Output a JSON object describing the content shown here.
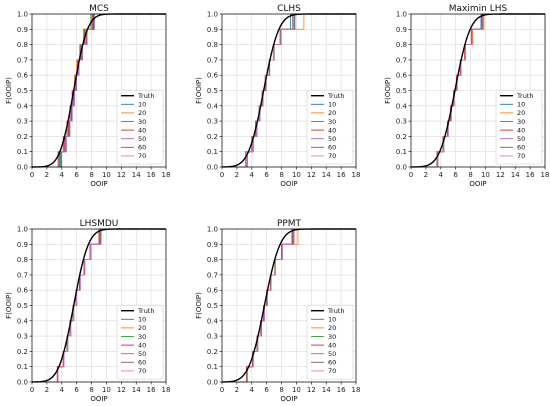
{
  "chart_data": [
    {
      "type": "line",
      "title": "MCS",
      "xlabel": "OOIP",
      "ylabel": "F(OOIP)",
      "xlim": [
        0,
        18
      ],
      "ylim": [
        0,
        1.0
      ],
      "xticks": [
        "0",
        "2",
        "4",
        "6",
        "8",
        "10",
        "12",
        "14",
        "16",
        "18"
      ],
      "yticks": [
        "0.0",
        "0.1",
        "0.2",
        "0.3",
        "0.4",
        "0.5",
        "0.6",
        "0.7",
        "0.8",
        "0.9",
        "1.0"
      ],
      "grid": true,
      "legend_position": "lower-right",
      "truth": {
        "name": "Truth",
        "mean": 5.6,
        "sd": 1.45
      },
      "series": [
        {
          "name": "10",
          "color": "#1f77b4",
          "values": [
            3.9,
            4.6,
            5.0,
            5.3,
            5.6,
            5.9,
            6.2,
            6.6,
            7.2,
            8.3
          ]
        },
        {
          "name": "20",
          "color": "#ff7f0e",
          "values": [
            3.6,
            4.3,
            4.8,
            5.1,
            5.4,
            5.7,
            6.0,
            6.4,
            6.9,
            8.0
          ]
        },
        {
          "name": "30",
          "color": "#2ca02c",
          "values": [
            3.8,
            4.5,
            4.9,
            5.2,
            5.5,
            5.8,
            6.1,
            6.5,
            7.0,
            7.9
          ]
        },
        {
          "name": "40",
          "color": "#d62728",
          "values": [
            3.7,
            4.4,
            4.9,
            5.3,
            5.6,
            5.9,
            6.3,
            6.7,
            7.3,
            8.2
          ]
        },
        {
          "name": "50",
          "color": "#9467bd",
          "values": [
            4.0,
            4.6,
            5.1,
            5.4,
            5.7,
            6.0,
            6.3,
            6.8,
            7.4,
            8.4
          ]
        },
        {
          "name": "60",
          "color": "#8c564b",
          "values": [
            3.5,
            4.2,
            4.7,
            5.1,
            5.4,
            5.8,
            6.1,
            6.5,
            7.1,
            8.1
          ]
        },
        {
          "name": "70",
          "color": "#e377c2",
          "values": [
            3.6,
            4.3,
            4.8,
            5.2,
            5.5,
            5.8,
            6.2,
            6.6,
            7.2,
            8.0
          ]
        }
      ]
    },
    {
      "type": "line",
      "title": "CLHS",
      "xlabel": "OOIP",
      "ylabel": "F(OOIP)",
      "xlim": [
        0,
        18
      ],
      "ylim": [
        0,
        1.0
      ],
      "xticks": [
        "0",
        "2",
        "4",
        "6",
        "8",
        "10",
        "12",
        "14",
        "16",
        "18"
      ],
      "yticks": [
        "0.0",
        "0.1",
        "0.2",
        "0.3",
        "0.4",
        "0.5",
        "0.6",
        "0.7",
        "0.8",
        "0.9",
        "1.0"
      ],
      "grid": true,
      "legend_position": "lower-right",
      "truth": {
        "name": "Truth",
        "mean": 5.6,
        "sd": 1.6
      },
      "series": [
        {
          "name": "10",
          "color": "#1f77b4",
          "values": [
            3.4,
            4.2,
            4.7,
            5.1,
            5.5,
            5.9,
            6.4,
            7.0,
            7.9,
            9.2
          ]
        },
        {
          "name": "20",
          "color": "#ff7f0e",
          "values": [
            3.2,
            4.0,
            4.5,
            5.0,
            5.4,
            5.8,
            6.3,
            6.9,
            7.8,
            11.0
          ]
        },
        {
          "name": "30",
          "color": "#2ca02c",
          "values": [
            3.3,
            4.1,
            4.6,
            5.0,
            5.5,
            5.9,
            6.4,
            7.0,
            7.9,
            9.8
          ]
        },
        {
          "name": "40",
          "color": "#d62728",
          "values": [
            3.2,
            4.0,
            4.6,
            5.0,
            5.4,
            5.8,
            6.3,
            6.9,
            7.8,
            9.6
          ]
        },
        {
          "name": "50",
          "color": "#9467bd",
          "values": [
            3.3,
            4.1,
            4.6,
            5.1,
            5.5,
            5.9,
            6.4,
            7.0,
            7.9,
            9.7
          ]
        },
        {
          "name": "60",
          "color": "#8c564b",
          "values": [
            3.2,
            4.0,
            4.5,
            5.0,
            5.4,
            5.9,
            6.4,
            7.0,
            7.9,
            9.5
          ]
        },
        {
          "name": "70",
          "color": "#e377c2",
          "values": [
            3.3,
            4.1,
            4.6,
            5.0,
            5.4,
            5.8,
            6.3,
            6.9,
            7.8,
            9.6
          ]
        }
      ]
    },
    {
      "type": "line",
      "title": "Maximin LHS",
      "xlabel": "OOIP",
      "ylabel": "F(OOIP)",
      "xlim": [
        0,
        18
      ],
      "ylim": [
        0,
        1.0
      ],
      "xticks": [
        "0",
        "2",
        "4",
        "6",
        "8",
        "10",
        "12",
        "14",
        "16",
        "18"
      ],
      "yticks": [
        "0.0",
        "0.1",
        "0.2",
        "0.3",
        "0.4",
        "0.5",
        "0.6",
        "0.7",
        "0.8",
        "0.9",
        "1.0"
      ],
      "grid": true,
      "legend_position": "lower-right",
      "truth": {
        "name": "Truth",
        "mean": 5.9,
        "sd": 1.6
      },
      "series": [
        {
          "name": "10",
          "color": "#1f77b4",
          "values": [
            3.6,
            4.4,
            5.0,
            5.4,
            5.8,
            6.2,
            6.7,
            7.3,
            8.2,
            9.4
          ]
        },
        {
          "name": "20",
          "color": "#ff7f0e",
          "values": [
            3.5,
            4.3,
            4.9,
            5.4,
            5.8,
            6.2,
            6.7,
            7.3,
            8.3,
            9.8
          ]
        },
        {
          "name": "30",
          "color": "#2ca02c",
          "values": [
            3.6,
            4.4,
            5.0,
            5.4,
            5.8,
            6.2,
            6.7,
            7.3,
            8.2,
            9.6
          ]
        },
        {
          "name": "40",
          "color": "#d62728",
          "values": [
            3.5,
            4.3,
            4.9,
            5.3,
            5.7,
            6.1,
            6.6,
            7.2,
            8.1,
            9.5
          ]
        },
        {
          "name": "50",
          "color": "#9467bd",
          "values": [
            3.6,
            4.4,
            5.0,
            5.4,
            5.8,
            6.2,
            6.7,
            7.3,
            8.2,
            9.6
          ]
        },
        {
          "name": "60",
          "color": "#8c564b",
          "values": [
            3.5,
            4.3,
            4.9,
            5.4,
            5.8,
            6.2,
            6.7,
            7.3,
            8.2,
            9.5
          ]
        },
        {
          "name": "70",
          "color": "#e377c2",
          "values": [
            3.6,
            4.4,
            5.0,
            5.4,
            5.8,
            6.2,
            6.7,
            7.3,
            8.2,
            9.7
          ]
        }
      ]
    },
    {
      "type": "line",
      "title": "LHSMDU",
      "xlabel": "OOIP",
      "ylabel": "F(OOIP)",
      "xlim": [
        0,
        18
      ],
      "ylim": [
        0,
        1.0
      ],
      "xticks": [
        "0",
        "2",
        "4",
        "6",
        "8",
        "10",
        "12",
        "14",
        "16",
        "18"
      ],
      "yticks": [
        "0.0",
        "0.1",
        "0.2",
        "0.3",
        "0.4",
        "0.5",
        "0.6",
        "0.7",
        "0.8",
        "0.9",
        "1.0"
      ],
      "grid": true,
      "legend_position": "lower-right",
      "truth": {
        "name": "Truth",
        "mean": 5.6,
        "sd": 1.55
      },
      "series": [
        {
          "name": "10",
          "color": "#1f77b4",
          "values": [
            3.5,
            4.3,
            4.8,
            5.2,
            5.6,
            6.0,
            6.4,
            7.0,
            7.8,
            9.0
          ]
        },
        {
          "name": "20",
          "color": "#ff7f0e",
          "values": [
            3.4,
            4.2,
            4.7,
            5.1,
            5.5,
            5.9,
            6.4,
            7.0,
            7.9,
            9.2
          ]
        },
        {
          "name": "30",
          "color": "#2ca02c",
          "values": [
            3.5,
            4.3,
            4.8,
            5.2,
            5.6,
            6.0,
            6.5,
            7.1,
            7.9,
            9.1
          ]
        },
        {
          "name": "40",
          "color": "#d62728",
          "values": [
            3.4,
            4.2,
            4.7,
            5.1,
            5.5,
            5.9,
            6.4,
            7.0,
            7.8,
            9.0
          ]
        },
        {
          "name": "50",
          "color": "#9467bd",
          "values": [
            3.5,
            4.3,
            4.8,
            5.2,
            5.6,
            6.0,
            6.4,
            7.0,
            7.8,
            9.1
          ]
        },
        {
          "name": "60",
          "color": "#8c564b",
          "values": [
            3.4,
            4.2,
            4.7,
            5.1,
            5.5,
            5.9,
            6.4,
            7.0,
            7.9,
            9.2
          ]
        },
        {
          "name": "70",
          "color": "#e377c2",
          "values": [
            3.5,
            4.3,
            4.8,
            5.2,
            5.6,
            6.0,
            6.5,
            7.1,
            7.9,
            9.3
          ]
        }
      ]
    },
    {
      "type": "line",
      "title": "PPMT",
      "xlabel": "OOIP",
      "ylabel": "F(OOIP)",
      "xlim": [
        0,
        18
      ],
      "ylim": [
        0,
        1.0
      ],
      "xticks": [
        "0",
        "2",
        "4",
        "6",
        "8",
        "10",
        "12",
        "14",
        "16",
        "18"
      ],
      "yticks": [
        "0.0",
        "0.1",
        "0.2",
        "0.3",
        "0.4",
        "0.5",
        "0.6",
        "0.7",
        "0.8",
        "0.9",
        "1.0"
      ],
      "grid": true,
      "legend_position": "lower-right",
      "truth": {
        "name": "Truth",
        "mean": 5.7,
        "sd": 1.65
      },
      "series": [
        {
          "name": "10",
          "color": "#1f77b4",
          "values": [
            3.4,
            4.2,
            4.8,
            5.3,
            5.7,
            6.1,
            6.6,
            7.2,
            8.1,
            9.4
          ]
        },
        {
          "name": "20",
          "color": "#ff7f0e",
          "values": [
            3.3,
            4.1,
            4.7,
            5.2,
            5.6,
            6.0,
            6.5,
            7.2,
            8.1,
            10.2
          ]
        },
        {
          "name": "30",
          "color": "#2ca02c",
          "values": [
            3.4,
            4.2,
            4.8,
            5.2,
            5.7,
            6.1,
            6.6,
            7.2,
            8.1,
            9.6
          ]
        },
        {
          "name": "40",
          "color": "#d62728",
          "values": [
            3.3,
            4.1,
            4.7,
            5.2,
            5.6,
            6.0,
            6.5,
            7.1,
            8.0,
            9.5
          ]
        },
        {
          "name": "50",
          "color": "#9467bd",
          "values": [
            3.4,
            4.2,
            4.8,
            5.3,
            5.7,
            6.1,
            6.6,
            7.2,
            8.1,
            9.6
          ]
        },
        {
          "name": "60",
          "color": "#8c564b",
          "values": [
            3.3,
            4.1,
            4.7,
            5.2,
            5.6,
            6.0,
            6.5,
            7.1,
            8.0,
            9.5
          ]
        },
        {
          "name": "70",
          "color": "#e377c2",
          "values": [
            3.4,
            4.2,
            4.8,
            5.2,
            5.7,
            6.1,
            6.6,
            7.2,
            8.1,
            9.7
          ]
        }
      ]
    }
  ]
}
